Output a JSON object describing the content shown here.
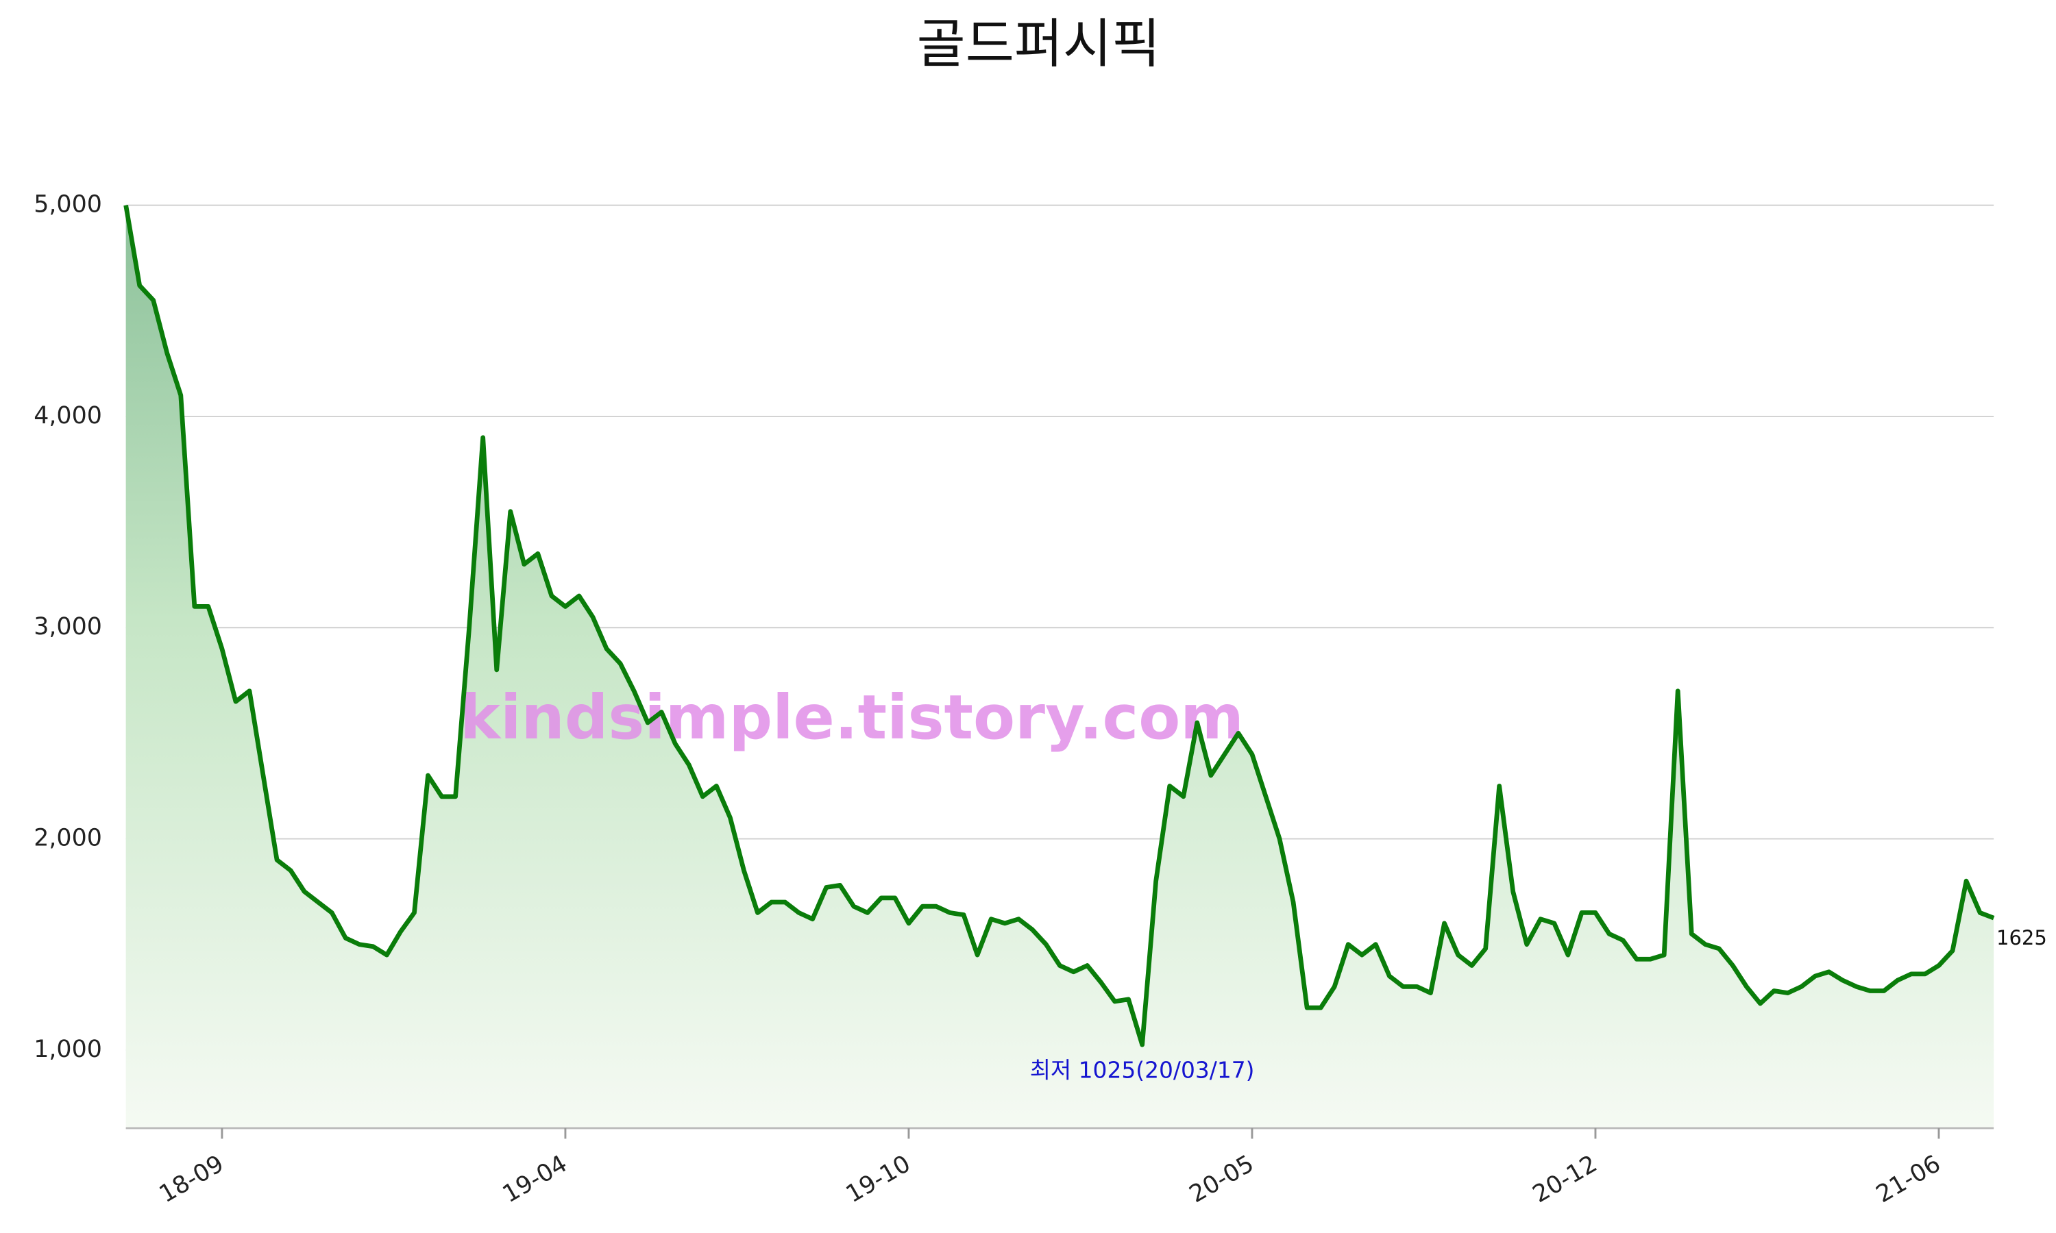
{
  "chart_data": {
    "type": "line",
    "title": "골드퍼시픽",
    "watermark": "kindsimple.tistory.com",
    "annotation": "최저 1025(20/03/17)",
    "color": "#0a7d0a",
    "categories": [
      null,
      null,
      null,
      null,
      null,
      null,
      null,
      "18-09",
      null,
      null,
      null,
      null,
      null,
      null,
      null,
      null,
      null,
      null,
      null,
      null,
      null,
      null,
      null,
      null,
      null,
      null,
      null,
      null,
      null,
      null,
      null,
      null,
      "19-04",
      null,
      null,
      null,
      null,
      null,
      null,
      null,
      null,
      null,
      null,
      null,
      null,
      null,
      null,
      null,
      null,
      null,
      null,
      null,
      null,
      null,
      null,
      null,
      null,
      "19-10",
      null,
      null,
      null,
      null,
      null,
      null,
      null,
      null,
      null,
      null,
      null,
      null,
      null,
      null,
      null,
      null,
      null,
      null,
      null,
      null,
      null,
      null,
      null,
      null,
      "20-05",
      null,
      null,
      null,
      null,
      null,
      null,
      null,
      null,
      null,
      null,
      null,
      null,
      null,
      null,
      null,
      null,
      null,
      null,
      null,
      null,
      null,
      null,
      null,
      null,
      "20-12",
      null,
      null,
      null,
      null,
      null,
      null,
      null,
      null,
      null,
      null,
      null,
      null,
      null,
      null,
      null,
      null,
      null,
      null,
      null,
      null,
      null,
      null,
      null,
      null,
      "21-06",
      null,
      null,
      null,
      null
    ],
    "values": [
      5000,
      4620,
      4550,
      4300,
      4100,
      3100,
      3100,
      2900,
      2650,
      2700,
      2300,
      1900,
      1850,
      1750,
      1700,
      1650,
      1530,
      1500,
      1490,
      1450,
      1560,
      1650,
      2300,
      2200,
      2200,
      3000,
      3900,
      2800,
      3550,
      3300,
      3350,
      3150,
      3100,
      3150,
      3050,
      2900,
      2830,
      2700,
      2550,
      2600,
      2450,
      2350,
      2200,
      2250,
      2100,
      1850,
      1650,
      1700,
      1700,
      1650,
      1620,
      1770,
      1780,
      1680,
      1650,
      1720,
      1720,
      1600,
      1680,
      1680,
      1650,
      1640,
      1450,
      1620,
      1600,
      1620,
      1570,
      1500,
      1400,
      1370,
      1400,
      1320,
      1230,
      1240,
      1025,
      1800,
      2250,
      2200,
      2550,
      2300,
      2400,
      2500,
      2400,
      2200,
      2000,
      1700,
      1200,
      1200,
      1300,
      1500,
      1450,
      1500,
      1350,
      1300,
      1300,
      1270,
      1600,
      1450,
      1400,
      1480,
      2250,
      1750,
      1500,
      1620,
      1600,
      1450,
      1650,
      1650,
      1550,
      1520,
      1430,
      1430,
      1450,
      2700,
      1550,
      1500,
      1480,
      1400,
      1300,
      1220,
      1280,
      1270,
      1300,
      1350,
      1370,
      1330,
      1300,
      1280,
      1280,
      1330,
      1360,
      1360,
      1400,
      1470,
      1800,
      1650,
      1625
    ],
    "ylim": [
      630,
      5000
    ],
    "yticks": [
      {
        "value": 1000,
        "label": "1,000"
      },
      {
        "value": 2000,
        "label": "2,000"
      },
      {
        "value": 3000,
        "label": "3,000"
      },
      {
        "value": 4000,
        "label": "4,000"
      },
      {
        "value": 5000,
        "label": "5,000"
      }
    ],
    "grid": true
  }
}
